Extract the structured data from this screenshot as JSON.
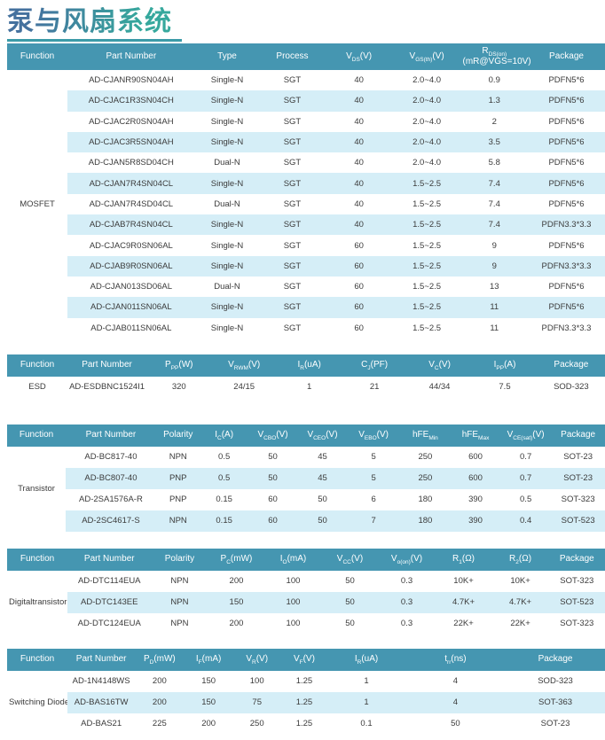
{
  "page": {
    "title": "泵与风扇系统"
  },
  "theme": {
    "header_bg": "#4596B1",
    "stripe_bg": "#D5EEF7",
    "underline_color": "#3C9AA8",
    "title_gradient_left": "#44719E",
    "title_gradient_right": "#36A89D",
    "body_text": "#3B3B3B",
    "header_text": "#FFFFFF"
  },
  "tables": [
    {
      "function": "MOSFET",
      "headers": [
        "Function",
        "Part Number",
        "Type",
        "Process",
        "V_{DS}(V)",
        "V_{GS(th)}(V)",
        "R_{DS(on)}\n(mR@VGS=10V)",
        "Package"
      ],
      "rows": [
        [
          "AD-CJANR90SN04AH",
          "Single-N",
          "SGT",
          "40",
          "2.0~4.0",
          "0.9",
          "PDFN5*6"
        ],
        [
          "AD-CJAC1R3SN04CH",
          "Single-N",
          "SGT",
          "40",
          "2.0~4.0",
          "1.3",
          "PDFN5*6"
        ],
        [
          "AD-CJAC2R0SN04AH",
          "Single-N",
          "SGT",
          "40",
          "2.0~4.0",
          "2",
          "PDFN5*6"
        ],
        [
          "AD-CJAC3R5SN04AH",
          "Single-N",
          "SGT",
          "40",
          "2.0~4.0",
          "3.5",
          "PDFN5*6"
        ],
        [
          "AD-CJAN5R8SD04CH",
          "Dual-N",
          "SGT",
          "40",
          "2.0~4.0",
          "5.8",
          "PDFN5*6"
        ],
        [
          "AD-CJAN7R4SN04CL",
          "Single-N",
          "SGT",
          "40",
          "1.5~2.5",
          "7.4",
          "PDFN5*6"
        ],
        [
          "AD-CJAN7R4SD04CL",
          "Dual-N",
          "SGT",
          "40",
          "1.5~2.5",
          "7.4",
          "PDFN5*6"
        ],
        [
          "AD-CJAB7R4SN04CL",
          "Single-N",
          "SGT",
          "40",
          "1.5~2.5",
          "7.4",
          "PDFN3.3*3.3"
        ],
        [
          "AD-CJAC9R0SN06AL",
          "Single-N",
          "SGT",
          "60",
          "1.5~2.5",
          "9",
          "PDFN5*6"
        ],
        [
          "AD-CJAB9R0SN06AL",
          "Single-N",
          "SGT",
          "60",
          "1.5~2.5",
          "9",
          "PDFN3.3*3.3"
        ],
        [
          "AD-CJAN013SD06AL",
          "Dual-N",
          "SGT",
          "60",
          "1.5~2.5",
          "13",
          "PDFN5*6"
        ],
        [
          "AD-CJAN011SN06AL",
          "Single-N",
          "SGT",
          "60",
          "1.5~2.5",
          "11",
          "PDFN5*6"
        ],
        [
          "AD-CJAB011SN06AL",
          "Single-N",
          "SGT",
          "60",
          "1.5~2.5",
          "11",
          "PDFN3.3*3.3"
        ]
      ]
    },
    {
      "function": "ESD",
      "headers": [
        "Function",
        "Part Number",
        "P_{PP}(W)",
        "V_{RWM}(V)",
        "I_{R}(uA)",
        "C_{J}(PF)",
        "V_{C}(V)",
        "I_{PP}(A)",
        "Package"
      ],
      "rows": [
        [
          "AD-ESDBNC1524I1",
          "320",
          "24/15",
          "1",
          "21",
          "44/34",
          "7.5",
          "SOD-323"
        ]
      ]
    },
    {
      "function": "Transistor",
      "headers": [
        "Function",
        "Part Number",
        "Polarity",
        "I_{C}(A)",
        "V_{CBO}(V)",
        "V_{CEO}(V)",
        "V_{EBO}(V)",
        "hFE_{Min}",
        "hFE_{Max}",
        "V_{CE(sat)}(V)",
        "Package"
      ],
      "rows": [
        [
          "AD-BC817-40",
          "NPN",
          "0.5",
          "50",
          "45",
          "5",
          "250",
          "600",
          "0.7",
          "SOT-23"
        ],
        [
          "AD-BC807-40",
          "PNP",
          "0.5",
          "50",
          "45",
          "5",
          "250",
          "600",
          "0.7",
          "SOT-23"
        ],
        [
          "AD-2SA1576A-R",
          "PNP",
          "0.15",
          "60",
          "50",
          "6",
          "180",
          "390",
          "0.5",
          "SOT-323"
        ],
        [
          "AD-2SC4617-S",
          "NPN",
          "0.15",
          "60",
          "50",
          "7",
          "180",
          "390",
          "0.4",
          "SOT-523"
        ]
      ]
    },
    {
      "function": "Digitaltransistor",
      "headers": [
        "Function",
        "Part Number",
        "Polarity",
        "P_{C}(mW)",
        "I_{O}(mA)",
        "V_{CC}(V)",
        "V_{o(on)}(V)",
        "R_{1}(Ω)",
        "R_{2}(Ω)",
        "Package"
      ],
      "rows": [
        [
          "AD-DTC114EUA",
          "NPN",
          "200",
          "100",
          "50",
          "0.3",
          "10K+",
          "10K+",
          "SOT-323"
        ],
        [
          "AD-DTC143EE",
          "NPN",
          "150",
          "100",
          "50",
          "0.3",
          "4.7K+",
          "4.7K+",
          "SOT-523"
        ],
        [
          "AD-DTC124EUA",
          "NPN",
          "200",
          "100",
          "50",
          "0.3",
          "22K+",
          "22K+",
          "SOT-323"
        ]
      ]
    },
    {
      "function": "Switching Diode",
      "headers": [
        "Function",
        "Part Number",
        "P_{D}(mW)",
        "I_{F}(mA)",
        "V_{R}(V)",
        "V_{F}(V)",
        "I_{R}(uA)",
        "t_{rr}(ns)",
        "Package"
      ],
      "rows": [
        [
          "AD-1N4148WS",
          "200",
          "150",
          "100",
          "1.25",
          "1",
          "4",
          "SOD-323"
        ],
        [
          "AD-BAS16TW",
          "200",
          "150",
          "75",
          "1.25",
          "1",
          "4",
          "SOT-363"
        ],
        [
          "AD-BAS21",
          "225",
          "200",
          "250",
          "1.25",
          "0.1",
          "50",
          "SOT-23"
        ]
      ]
    }
  ]
}
